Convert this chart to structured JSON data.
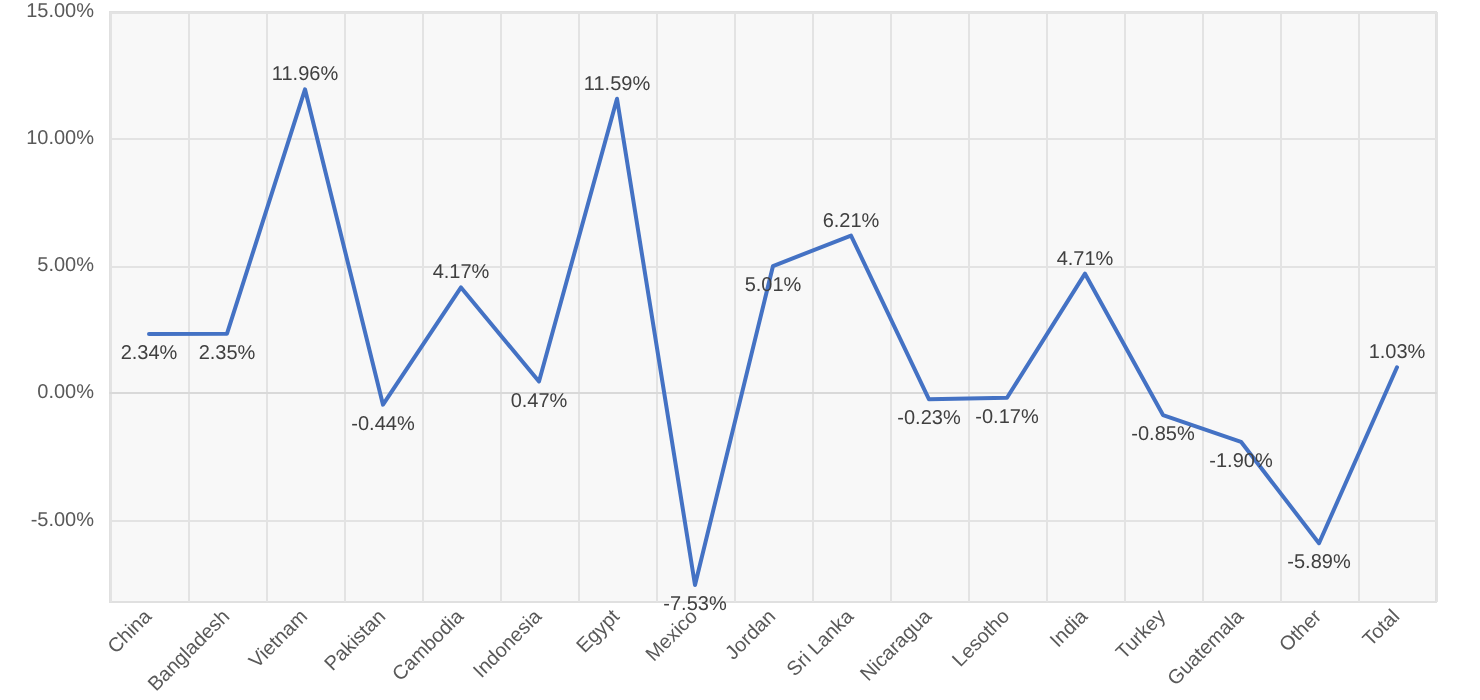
{
  "chart_data": {
    "type": "line",
    "categories": [
      "China",
      "Bangladesh",
      "Vietnam",
      "Pakistan",
      "Cambodia",
      "Indonesia",
      "Egypt",
      "Mexico",
      "Jordan",
      "Sri Lanka",
      "Nicaragua",
      "Lesotho",
      "India",
      "Turkey",
      "Guatemala",
      "Other",
      "Total"
    ],
    "series": [
      {
        "color": "#4472c4",
        "values": [
          2.34,
          2.35,
          11.96,
          -0.44,
          4.17,
          0.47,
          11.59,
          -7.53,
          5.01,
          6.21,
          -0.23,
          -0.17,
          4.71,
          -0.85,
          -1.9,
          -5.89,
          1.03
        ],
        "value_labels": [
          "2.34%",
          "2.35%",
          "11.96%",
          "-0.44%",
          "4.17%",
          "0.47%",
          "11.59%",
          "-7.53%",
          "5.01%",
          "6.21%",
          "-0.23%",
          "-0.17%",
          "4.71%",
          "-0.85%",
          "-1.90%",
          "-5.89%",
          "1.03%"
        ]
      }
    ],
    "ylim": [
      -8.2,
      15
    ],
    "yticks": [
      {
        "value": -5,
        "label": "-5.00%"
      },
      {
        "value": 0,
        "label": "0.00%"
      },
      {
        "value": 5,
        "label": "5.00%"
      },
      {
        "value": 10,
        "label": "10.00%"
      },
      {
        "value": 15,
        "label": "15.00%"
      }
    ],
    "grid": true,
    "marker": "none",
    "line_style": "solid"
  }
}
